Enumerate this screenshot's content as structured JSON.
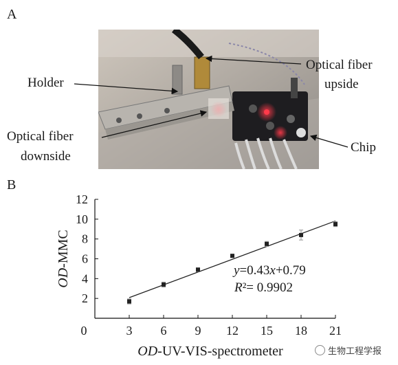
{
  "panel_a": {
    "letter": "A",
    "labels": {
      "holder": "Holder",
      "fiber_up_1": "Optical fiber",
      "fiber_up_2": "upside",
      "fiber_down_1": "Optical fiber",
      "fiber_down_2": "downside",
      "chip": "Chip"
    }
  },
  "panel_b": {
    "letter": "B"
  },
  "chart_data": {
    "type": "scatter",
    "xlabel_italic": "OD",
    "xlabel_rest": "-UV-VIS-spectrometer",
    "ylabel_italic": "OD",
    "ylabel_rest": "-MMC",
    "xlim": [
      0,
      21
    ],
    "ylim": [
      0,
      12
    ],
    "x_ticks": [
      0,
      3,
      6,
      9,
      12,
      15,
      18,
      21
    ],
    "y_ticks": [
      2,
      4,
      6,
      8,
      10,
      12
    ],
    "points": [
      {
        "x": 3,
        "y": 1.7,
        "err": 0.25
      },
      {
        "x": 6,
        "y": 3.4,
        "err": 0.25
      },
      {
        "x": 9,
        "y": 4.9,
        "err": 0.2
      },
      {
        "x": 12,
        "y": 6.3,
        "err": 0.15
      },
      {
        "x": 15,
        "y": 7.5,
        "err": 0.25
      },
      {
        "x": 18,
        "y": 8.4,
        "err": 0.5
      },
      {
        "x": 21,
        "y": 9.5,
        "err": 0.25
      }
    ],
    "fit": {
      "slope": 0.43,
      "intercept": 0.79
    },
    "equation": "y=0.43x+0.79",
    "r2": "R²= 0.9902"
  },
  "watermark": "生物工程学报"
}
